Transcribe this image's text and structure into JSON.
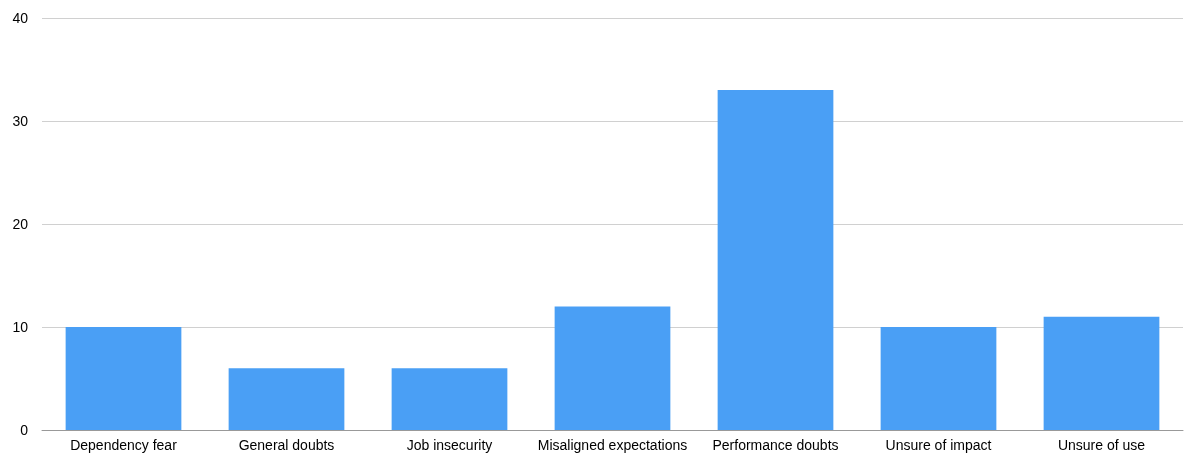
{
  "chart_data": {
    "type": "bar",
    "categories": [
      "Dependency fear",
      "General doubts",
      "Job insecurity",
      "Misaligned expectations",
      "Performance doubts",
      "Unsure of impact",
      "Unsure of use"
    ],
    "values": [
      10,
      6,
      6,
      12,
      33,
      10,
      11
    ],
    "color": "#4a9ff5",
    "ylim": [
      0,
      40
    ],
    "yticks": [
      0,
      10,
      20,
      30,
      40
    ],
    "grid": "y"
  }
}
